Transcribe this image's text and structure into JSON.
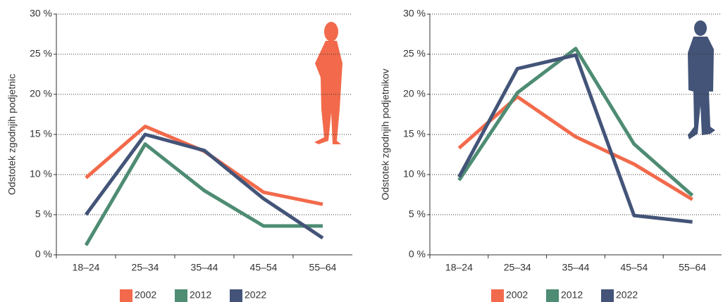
{
  "chart_data": [
    {
      "type": "line",
      "y_label": "Odstotek zgodnjih podjetnic",
      "categories": [
        "18–24",
        "25–34",
        "35–44",
        "45–54",
        "55–64"
      ],
      "series": [
        {
          "name": "2002",
          "color": "#f26a4b",
          "values": [
            9.6,
            16.0,
            12.9,
            7.8,
            6.3
          ]
        },
        {
          "name": "2012",
          "color": "#4e8c73",
          "values": [
            1.2,
            13.8,
            8.0,
            3.6,
            3.6
          ]
        },
        {
          "name": "2022",
          "color": "#435478",
          "values": [
            5.0,
            15.0,
            13.0,
            7.0,
            2.1
          ]
        }
      ],
      "ylim": [
        0,
        30
      ],
      "yticks": [
        {
          "value": 0,
          "label": "0 %"
        },
        {
          "value": 5,
          "label": "5 %"
        },
        {
          "value": 10,
          "label": "10 %"
        },
        {
          "value": 15,
          "label": "15 %"
        },
        {
          "value": 20,
          "label": "20 %"
        },
        {
          "value": 25,
          "label": "25 %"
        },
        {
          "value": 30,
          "label": "30 %"
        }
      ],
      "grid": true
    },
    {
      "type": "line",
      "y_label": "Odstotek zgodnjih podjetnikov",
      "categories": [
        "18–24",
        "25–34",
        "35–44",
        "45–54",
        "55–64"
      ],
      "series": [
        {
          "name": "2002",
          "color": "#f26a4b",
          "values": [
            13.3,
            19.7,
            14.7,
            11.3,
            6.9
          ]
        },
        {
          "name": "2012",
          "color": "#4e8c73",
          "values": [
            9.3,
            20.2,
            25.7,
            13.8,
            7.4
          ]
        },
        {
          "name": "2022",
          "color": "#435478",
          "values": [
            9.7,
            23.2,
            24.9,
            4.9,
            4.1
          ]
        }
      ],
      "ylim": [
        0,
        30
      ],
      "yticks": [
        {
          "value": 0,
          "label": "0 %"
        },
        {
          "value": 5,
          "label": "5 %"
        },
        {
          "value": 10,
          "label": "10 %"
        },
        {
          "value": 15,
          "label": "15 %"
        },
        {
          "value": 20,
          "label": "20 %"
        },
        {
          "value": 25,
          "label": "25 %"
        },
        {
          "value": 30,
          "label": "30 %"
        }
      ],
      "grid": true
    }
  ]
}
